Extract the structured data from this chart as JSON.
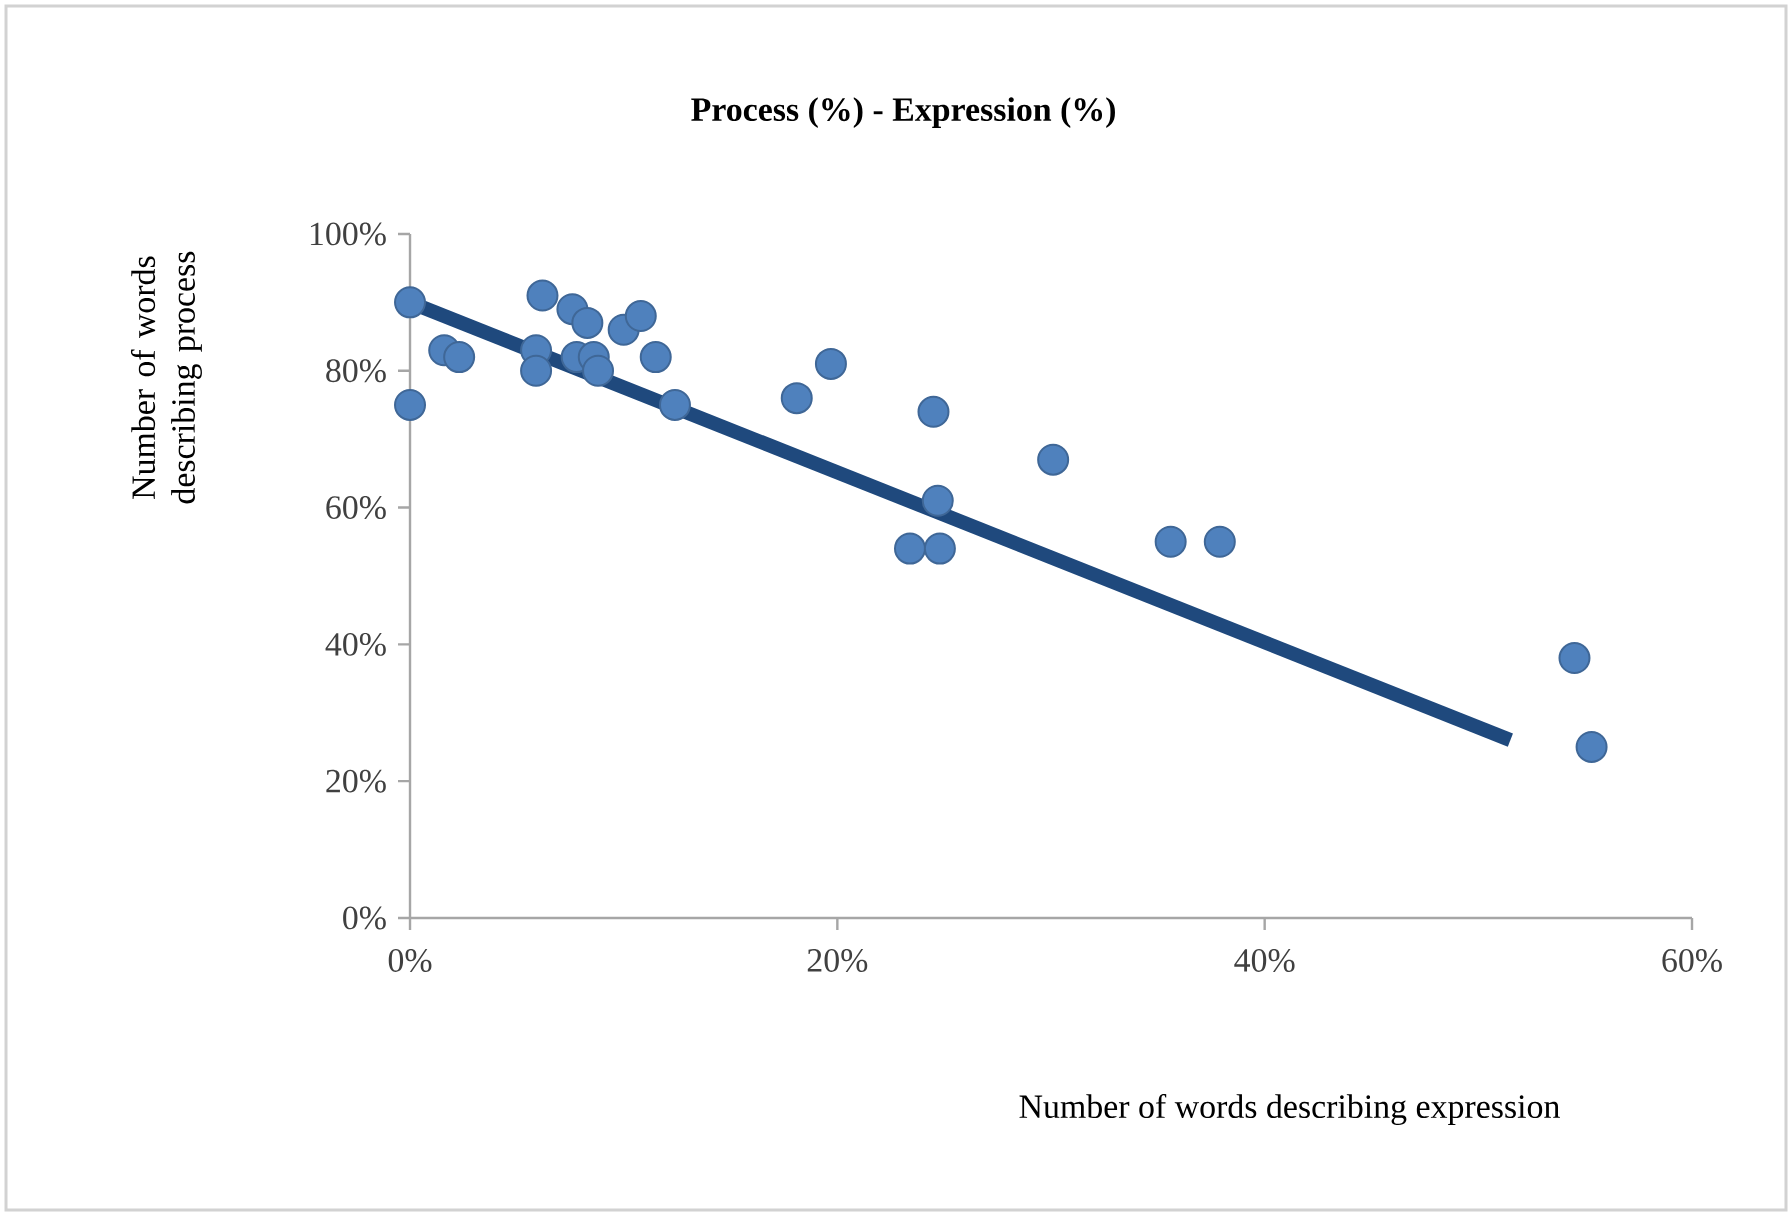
{
  "chart_data": {
    "type": "scatter",
    "title": "Process (%) - Expression (%)",
    "xlabel": "Number of words describing expression",
    "ylabel": "Number of words describing process",
    "xlim": [
      0,
      60
    ],
    "ylim": [
      0,
      100
    ],
    "xticks": [
      {
        "value": 0,
        "label": "0%"
      },
      {
        "value": 20,
        "label": "20%"
      },
      {
        "value": 40,
        "label": "40%"
      },
      {
        "value": 60,
        "label": "60%"
      }
    ],
    "yticks": [
      {
        "value": 0,
        "label": "0%"
      },
      {
        "value": 20,
        "label": "20%"
      },
      {
        "value": 40,
        "label": "40%"
      },
      {
        "value": 60,
        "label": "60%"
      },
      {
        "value": 80,
        "label": "80%"
      },
      {
        "value": 100,
        "label": "100%"
      }
    ],
    "grid": false,
    "series": [
      {
        "marker": "circle",
        "color": "#4f81bd",
        "x": [
          0,
          0,
          1.6,
          2.3,
          6.2,
          5.9,
          5.9,
          7.6,
          8.3,
          7.8,
          8.6,
          8.8,
          10.0,
          10.8,
          11.5,
          12.4,
          18.1,
          19.7,
          24.5,
          24.7,
          23.4,
          24.8,
          30.1,
          35.6,
          37.9,
          54.5,
          55.3
        ],
        "values": [
          90,
          75,
          83,
          82,
          91,
          83,
          80,
          89,
          87,
          82,
          82,
          80,
          86,
          88,
          82,
          75,
          76,
          81,
          74,
          61,
          54,
          54,
          67,
          55,
          55,
          38,
          25
        ]
      },
      {
        "type": "line",
        "marker": "none",
        "color": "#1f497d",
        "x": [
          0,
          51.5
        ],
        "values": [
          90,
          26
        ]
      }
    ]
  }
}
